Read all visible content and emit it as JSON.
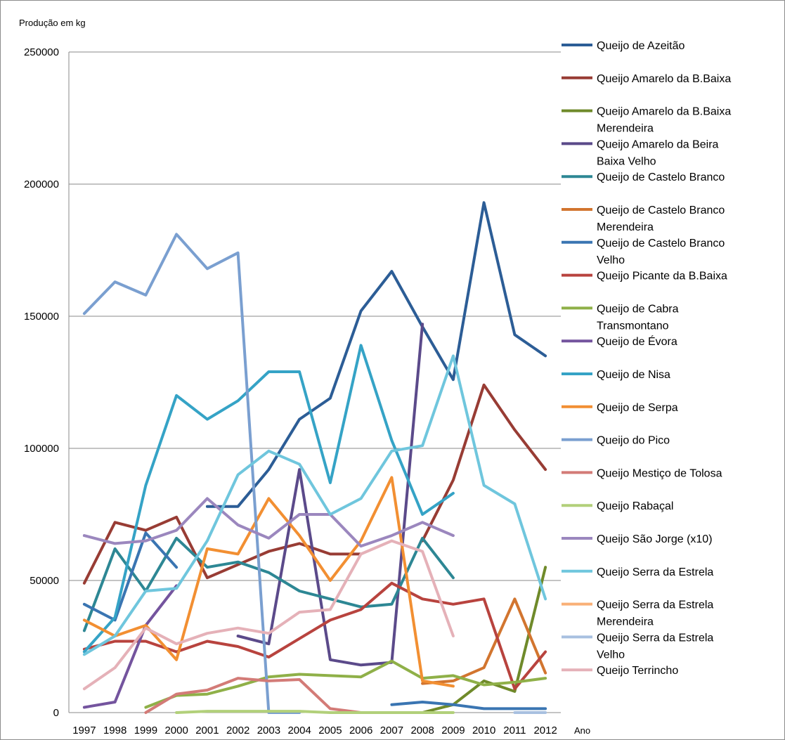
{
  "chart_data": {
    "type": "line",
    "ylabel": "Produção em kg",
    "xlabel": "Ano",
    "ylim": [
      0,
      250000
    ],
    "yticks": [
      "0",
      "50000",
      "100000",
      "150000",
      "200000",
      "250000"
    ],
    "categories": [
      "1997",
      "1998",
      "1999",
      "2000",
      "2001",
      "2002",
      "2003",
      "2004",
      "2005",
      "2006",
      "2007",
      "2008",
      "2009",
      "2010",
      "2011",
      "2012"
    ],
    "grid": "horizontal",
    "legend_position": "right",
    "series": [
      {
        "name": "Queijo de Azeitão",
        "color": "#2c5d96",
        "values": [
          null,
          null,
          null,
          null,
          78000,
          78000,
          92000,
          111000,
          119000,
          152000,
          167000,
          146000,
          126000,
          193000,
          143000,
          135000
        ]
      },
      {
        "name": "Queijo Amarelo da B.Baixa",
        "color": "#983c34",
        "values": [
          49000,
          72000,
          69000,
          74000,
          51000,
          56000,
          61000,
          64000,
          60000,
          60000,
          null,
          65000,
          88000,
          124000,
          107000,
          92000
        ]
      },
      {
        "name": "Queijo Amarelo da B.Baixa Merendeira",
        "color": "#6f8a2a",
        "values": [
          null,
          null,
          null,
          null,
          null,
          null,
          null,
          null,
          null,
          null,
          null,
          0,
          3000,
          12000,
          8000,
          55000
        ]
      },
      {
        "name": "Queijo Amarelo da Beira Baixa Velho",
        "color": "#5b4a8a",
        "values": [
          null,
          null,
          null,
          null,
          null,
          29000,
          26000,
          92000,
          20000,
          18000,
          19000,
          147000,
          null,
          null,
          null,
          null
        ]
      },
      {
        "name": "Queijo de Castelo Branco",
        "color": "#2d8794",
        "values": [
          31000,
          62000,
          46000,
          66000,
          55000,
          57000,
          53000,
          46000,
          43000,
          40000,
          41000,
          66000,
          51000,
          null,
          null,
          null
        ]
      },
      {
        "name": "Queijo de Castelo Branco Merendeira",
        "color": "#d2752f",
        "values": [
          null,
          null,
          null,
          null,
          null,
          null,
          null,
          null,
          null,
          null,
          null,
          11000,
          12000,
          17000,
          43000,
          15000
        ]
      },
      {
        "name": "Queijo de Castelo Branco Velho",
        "color": "#3a75b2",
        "values": [
          41000,
          35000,
          68000,
          55000,
          null,
          null,
          null,
          null,
          null,
          null,
          3000,
          4000,
          3000,
          1500,
          1500,
          1500
        ]
      },
      {
        "name": "Queijo Picante da B.Baixa",
        "color": "#b8433e",
        "values": [
          24000,
          27000,
          27000,
          23000,
          27000,
          25000,
          21000,
          28000,
          35000,
          39000,
          49000,
          43000,
          41000,
          43000,
          9000,
          23000
        ]
      },
      {
        "name": "Queijo de Cabra Transmontano",
        "color": "#8fb048",
        "values": [
          null,
          null,
          2000,
          6500,
          7000,
          10000,
          13500,
          14500,
          14000,
          13500,
          19500,
          13000,
          14000,
          10500,
          11500,
          13000
        ]
      },
      {
        "name": "Queijo de Évora",
        "color": "#74549e",
        "values": [
          2000,
          4000,
          33000,
          48000,
          null,
          null,
          null,
          null,
          null,
          null,
          null,
          null,
          null,
          null,
          null,
          null
        ]
      },
      {
        "name": "Queijo de Nisa",
        "color": "#35a3c6",
        "values": [
          23000,
          36000,
          86000,
          120000,
          111000,
          118000,
          129000,
          129000,
          87000,
          139000,
          103000,
          75000,
          83000,
          null,
          null,
          null
        ]
      },
      {
        "name": "Queijo de Serpa",
        "color": "#f28f32",
        "values": [
          35000,
          29000,
          33000,
          20000,
          62000,
          60000,
          81000,
          67000,
          50000,
          65000,
          89000,
          12000,
          10000,
          null,
          null,
          null
        ]
      },
      {
        "name": "Queijo do Pico",
        "color": "#7a9fd0",
        "values": [
          151000,
          163000,
          158000,
          181000,
          168000,
          174000,
          0,
          0,
          null,
          null,
          null,
          null,
          null,
          null,
          null,
          null
        ]
      },
      {
        "name": "Queijo Mestiço de Tolosa",
        "color": "#d37b77",
        "values": [
          null,
          null,
          0,
          7000,
          8500,
          13000,
          12000,
          12500,
          1500,
          0,
          0,
          null,
          null,
          null,
          null,
          null
        ]
      },
      {
        "name": "Queijo Rabaçal",
        "color": "#b2d07a",
        "values": [
          null,
          null,
          null,
          0,
          500,
          500,
          500,
          500,
          0,
          0,
          0,
          0,
          0,
          null,
          null,
          null
        ]
      },
      {
        "name": "Queijo São Jorge (x10)",
        "color": "#9b87be",
        "values": [
          67000,
          64000,
          65000,
          69000,
          81000,
          71000,
          66000,
          75000,
          75000,
          63000,
          67000,
          72000,
          67000,
          null,
          null,
          null
        ]
      },
      {
        "name": "Queijo Serra da Estrela",
        "color": "#6fc6dd",
        "values": [
          22000,
          29000,
          46000,
          47000,
          65000,
          90000,
          99000,
          94000,
          75000,
          81000,
          99000,
          101000,
          135000,
          86000,
          79000,
          43000
        ]
      },
      {
        "name": "Queijo Serra da Estrela Merendeira",
        "color": "#f9b077",
        "values": [
          null,
          null,
          null,
          null,
          null,
          null,
          null,
          null,
          null,
          null,
          null,
          null,
          null,
          null,
          null,
          null
        ]
      },
      {
        "name": "Queijo Serra da Estrela Velho",
        "color": "#a8c0e0",
        "values": [
          null,
          null,
          null,
          null,
          null,
          null,
          null,
          null,
          null,
          null,
          null,
          null,
          null,
          null,
          0,
          0
        ]
      },
      {
        "name": "Queijo Terrincho",
        "color": "#e5b1b8",
        "values": [
          9000,
          17000,
          32000,
          26000,
          30000,
          32000,
          30000,
          38000,
          39000,
          60000,
          65000,
          61000,
          29000,
          null,
          null,
          null
        ]
      }
    ]
  }
}
